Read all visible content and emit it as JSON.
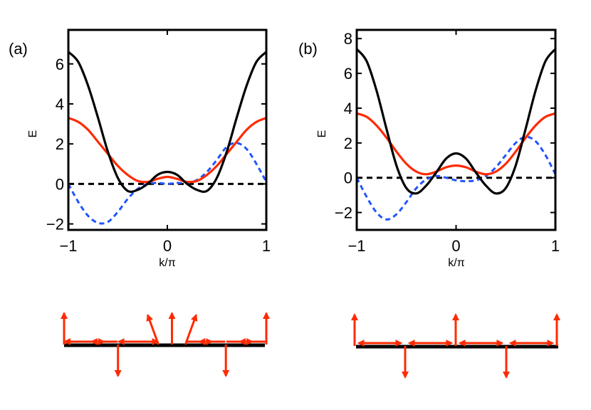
{
  "chart_data": [
    {
      "type": "line",
      "panel_label": "(a)",
      "xlabel": "k/π",
      "ylabel": "E",
      "xlim": [
        -1,
        1
      ],
      "ylim": [
        -2.3,
        7.7
      ],
      "xticks": [
        -1,
        0,
        1
      ],
      "xtick_labels": [
        "−1",
        "0",
        "1"
      ],
      "yticks": [
        -2,
        0,
        2,
        4,
        6
      ],
      "ytick_labels": [
        "−2",
        "0",
        "2",
        "4",
        "6"
      ],
      "series": [
        {
          "name": "black",
          "color": "#000000",
          "style": "solid",
          "x": [
            -1.0,
            -0.9,
            -0.8,
            -0.7,
            -0.6,
            -0.5,
            -0.4,
            -0.3,
            -0.2,
            -0.1,
            0.0,
            0.1,
            0.2,
            0.3,
            0.4,
            0.5,
            0.6,
            0.7,
            0.8,
            0.9,
            1.0
          ],
          "y": [
            6.6,
            6.1,
            4.9,
            3.3,
            1.6,
            0.3,
            -0.35,
            -0.3,
            0.0,
            0.45,
            0.6,
            0.45,
            0.0,
            -0.3,
            -0.35,
            0.3,
            1.6,
            3.3,
            4.9,
            6.1,
            6.6
          ]
        },
        {
          "name": "red",
          "color": "#ff2a00",
          "style": "solid",
          "x": [
            -1.0,
            -0.9,
            -0.8,
            -0.7,
            -0.6,
            -0.5,
            -0.4,
            -0.3,
            -0.2,
            -0.1,
            0.0,
            0.1,
            0.2,
            0.3,
            0.4,
            0.5,
            0.6,
            0.7,
            0.8,
            0.9,
            1.0
          ],
          "y": [
            3.3,
            3.1,
            2.7,
            2.1,
            1.5,
            0.9,
            0.45,
            0.15,
            0.1,
            0.25,
            0.35,
            0.25,
            0.1,
            0.15,
            0.45,
            0.9,
            1.5,
            2.1,
            2.7,
            3.1,
            3.3
          ]
        },
        {
          "name": "blue",
          "color": "#2255ff",
          "style": "dashed",
          "x": [
            -1.0,
            -0.9,
            -0.8,
            -0.7,
            -0.6,
            -0.5,
            -0.4,
            -0.3,
            -0.2,
            -0.1,
            0.0,
            0.1,
            0.2,
            0.3,
            0.4,
            0.5,
            0.6,
            0.7,
            0.8,
            0.9,
            1.0
          ],
          "y": [
            0.0,
            -0.9,
            -1.6,
            -1.95,
            -1.9,
            -1.4,
            -0.75,
            -0.25,
            0.0,
            0.05,
            0.0,
            0.05,
            0.05,
            0.2,
            0.6,
            1.2,
            1.85,
            2.05,
            1.75,
            1.0,
            0.1
          ]
        },
        {
          "name": "zero",
          "color": "#000000",
          "style": "dashed",
          "x": [
            -1,
            1
          ],
          "y": [
            0,
            0
          ]
        }
      ]
    },
    {
      "type": "line",
      "panel_label": "(b)",
      "xlabel": "k/π",
      "ylabel": "E",
      "xlim": [
        -1,
        1
      ],
      "ylim": [
        -3.0,
        8.5
      ],
      "xticks": [
        -1,
        0,
        1
      ],
      "xtick_labels": [
        "−1",
        "0",
        "1"
      ],
      "yticks": [
        -2,
        0,
        2,
        4,
        6,
        8
      ],
      "ytick_labels": [
        "−2",
        "0",
        "2",
        "4",
        "6",
        "8"
      ],
      "series": [
        {
          "name": "black",
          "color": "#000000",
          "style": "solid",
          "x": [
            -1.0,
            -0.9,
            -0.8,
            -0.7,
            -0.6,
            -0.5,
            -0.4,
            -0.3,
            -0.2,
            -0.1,
            0.0,
            0.1,
            0.2,
            0.3,
            0.4,
            0.5,
            0.6,
            0.7,
            0.8,
            0.9,
            1.0
          ],
          "y": [
            7.4,
            6.7,
            5.0,
            2.8,
            0.7,
            -0.6,
            -0.9,
            -0.45,
            0.3,
            1.1,
            1.4,
            1.1,
            0.3,
            -0.45,
            -0.9,
            -0.6,
            0.7,
            2.8,
            5.0,
            6.7,
            7.4
          ]
        },
        {
          "name": "red",
          "color": "#ff2a00",
          "style": "solid",
          "x": [
            -1.0,
            -0.9,
            -0.8,
            -0.7,
            -0.6,
            -0.5,
            -0.4,
            -0.3,
            -0.2,
            -0.1,
            0.0,
            0.1,
            0.2,
            0.3,
            0.4,
            0.5,
            0.6,
            0.7,
            0.8,
            0.9,
            1.0
          ],
          "y": [
            3.7,
            3.5,
            3.0,
            2.3,
            1.5,
            0.8,
            0.35,
            0.2,
            0.35,
            0.6,
            0.7,
            0.6,
            0.35,
            0.2,
            0.35,
            0.8,
            1.5,
            2.3,
            3.0,
            3.5,
            3.7
          ]
        },
        {
          "name": "blue",
          "color": "#2255ff",
          "style": "dashed",
          "x": [
            -1.0,
            -0.9,
            -0.8,
            -0.7,
            -0.6,
            -0.5,
            -0.4,
            -0.3,
            -0.2,
            -0.1,
            0.0,
            0.1,
            0.2,
            0.3,
            0.4,
            0.5,
            0.6,
            0.7,
            0.8,
            0.9,
            1.0
          ],
          "y": [
            0.0,
            -1.1,
            -2.0,
            -2.4,
            -2.1,
            -1.4,
            -0.6,
            -0.1,
            0.1,
            0.0,
            -0.15,
            -0.2,
            -0.15,
            0.1,
            0.6,
            1.3,
            2.0,
            2.35,
            2.1,
            1.3,
            0.2
          ]
        },
        {
          "name": "zero",
          "color": "#000000",
          "style": "dashed",
          "x": [
            -1,
            1
          ],
          "y": [
            0,
            0
          ]
        }
      ]
    }
  ],
  "spin_diagrams": [
    {
      "panel": "a",
      "arrow_color": "#ff2a00",
      "arrow_angles_deg": [
        90,
        180,
        0,
        180,
        -90,
        180,
        0,
        110,
        90,
        70,
        0,
        180,
        -90,
        0,
        180,
        90
      ]
    },
    {
      "panel": "b",
      "arrow_color": "#ff2a00",
      "arrow_angles_deg": [
        90,
        180,
        0,
        -90,
        180,
        0,
        90,
        180,
        0,
        -90,
        180,
        0,
        90
      ]
    }
  ]
}
